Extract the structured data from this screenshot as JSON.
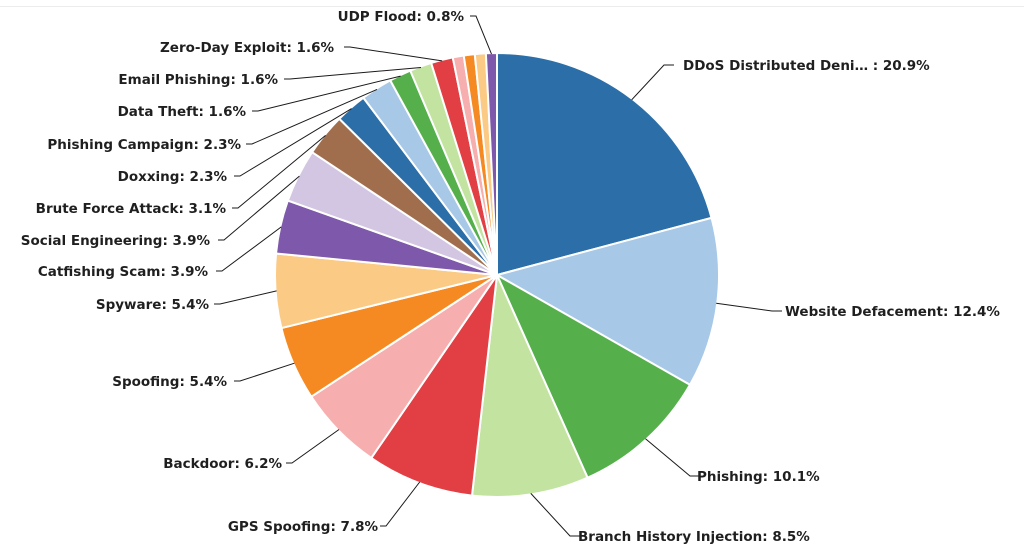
{
  "chart_data": {
    "type": "pie",
    "title": "",
    "label_format": "{name}: {pct}%",
    "start_angle_deg": 0,
    "direction": "clockwise",
    "slices": [
      {
        "name": "DDoS Distributed Deni… ",
        "value": 20.9,
        "color": "#2b6ea8"
      },
      {
        "name": "Website Defacement",
        "value": 12.4,
        "color": "#a7c8e6"
      },
      {
        "name": "Phishing",
        "value": 10.1,
        "color": "#55b04c"
      },
      {
        "name": "Branch History Injection",
        "value": 8.5,
        "color": "#c3e3a0"
      },
      {
        "name": "GPS Spoofing",
        "value": 7.8,
        "color": "#e23f44"
      },
      {
        "name": "Backdoor",
        "value": 6.2,
        "color": "#f6afae"
      },
      {
        "name": "Spoofing",
        "value": 5.4,
        "color": "#f58a22"
      },
      {
        "name": "Spyware",
        "value": 5.4,
        "color": "#fbca85"
      },
      {
        "name": "Catfishing Scam",
        "value": 3.9,
        "color": "#7e58aa"
      },
      {
        "name": "Social Engineering",
        "value": 3.9,
        "color": "#d3c6e2"
      },
      {
        "name": "Brute Force Attack",
        "value": 3.1,
        "color": "#a06e4d"
      },
      {
        "name": "Doxxing",
        "value": 2.3,
        "color": "#2b6ea8"
      },
      {
        "name": "Phishing Campaign",
        "value": 2.3,
        "color": "#a7c8e6"
      },
      {
        "name": "Data Theft",
        "value": 1.6,
        "color": "#55b04c"
      },
      {
        "name": "Email Phishing",
        "value": 1.6,
        "color": "#c3e3a0"
      },
      {
        "name": "Zero-Day Exploit",
        "value": 1.6,
        "color": "#e23f44"
      },
      {
        "name": "",
        "value": 0.8,
        "color": "#f6afae"
      },
      {
        "name": "",
        "value": 0.8,
        "color": "#f58a22"
      },
      {
        "name": "",
        "value": 0.8,
        "color": "#fbca85"
      },
      {
        "name": "UDP Flood",
        "value": 0.8,
        "color": "#7e58aa"
      }
    ]
  }
}
